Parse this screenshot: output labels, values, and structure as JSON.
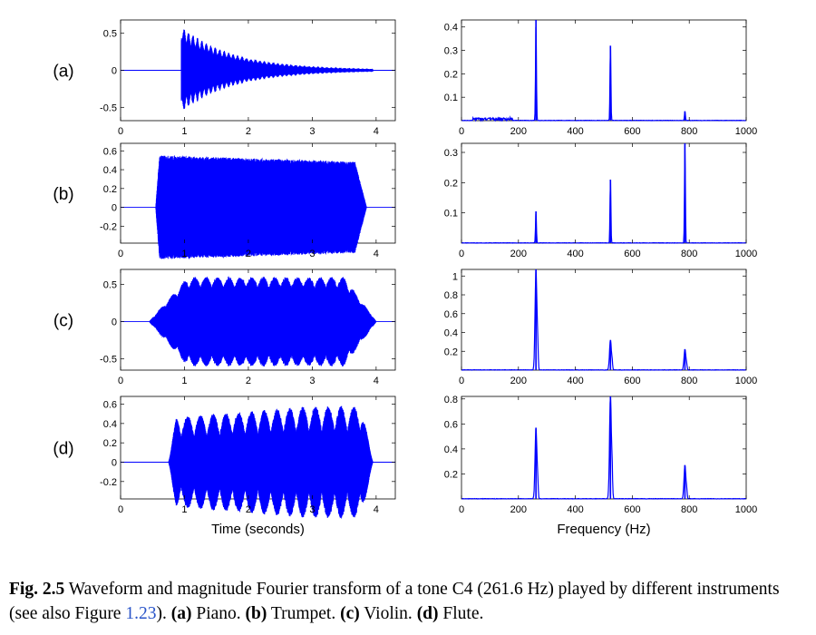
{
  "chart_data": {
    "type": "line",
    "panels": [
      "(a)",
      "(b)",
      "(c)",
      "(d)"
    ],
    "series_color": "#0000ff",
    "x_axis_label": "Time (seconds)",
    "f_axis_label": "Frequency (Hz)",
    "x_ticks": [
      "0",
      "1",
      "2",
      "3",
      "4"
    ],
    "f_ticks": [
      "0",
      "200",
      "400",
      "600",
      "800",
      "1000"
    ],
    "xlim": [
      0,
      4.3
    ],
    "flim": [
      0,
      1000
    ],
    "rows": [
      {
        "label": "(a)",
        "instrument": "Piano",
        "wave": {
          "ylim": [
            -0.68,
            0.68
          ],
          "yticks": [
            "0.5",
            "0",
            "-0.5"
          ],
          "ytick_values": [
            0.5,
            0,
            -0.5
          ],
          "onset": 0.95,
          "end": 3.95,
          "peak": 0.6,
          "envelope": "decay"
        },
        "spectrum": {
          "ylim": [
            0,
            0.43
          ],
          "yticks": [
            "0.4",
            "0.3",
            "0.2",
            "0.1"
          ],
          "ytick_values": [
            0.4,
            0.3,
            0.2,
            0.1
          ],
          "peaks": [
            {
              "f": 261.6,
              "a": 0.43
            },
            {
              "f": 523.2,
              "a": 0.32
            },
            {
              "f": 784.8,
              "a": 0.04
            }
          ]
        }
      },
      {
        "label": "(b)",
        "instrument": "Trumpet",
        "wave": {
          "ylim": [
            -0.38,
            0.68
          ],
          "yticks": [
            "0.6",
            "0.4",
            "0.2",
            "0",
            "-0.2"
          ],
          "ytick_values": [
            0.6,
            0.4,
            0.2,
            0,
            -0.2
          ],
          "onset": 0.55,
          "end": 3.85,
          "peak": 0.6,
          "envelope": "sustain"
        },
        "spectrum": {
          "ylim": [
            0,
            0.33
          ],
          "yticks": [
            "0.3",
            "0.2",
            "0.1"
          ],
          "ytick_values": [
            0.3,
            0.2,
            0.1
          ],
          "peaks": [
            {
              "f": 261.6,
              "a": 0.105
            },
            {
              "f": 523.2,
              "a": 0.21
            },
            {
              "f": 784.8,
              "a": 0.33
            }
          ]
        }
      },
      {
        "label": "(c)",
        "instrument": "Violin",
        "wave": {
          "ylim": [
            -0.65,
            0.7
          ],
          "yticks": [
            "0.5",
            "0",
            "-0.5"
          ],
          "ytick_values": [
            0.5,
            0,
            -0.5
          ],
          "onset": 0.45,
          "end": 4.0,
          "peak": 0.6,
          "envelope": "vibrato"
        },
        "spectrum": {
          "ylim": [
            0,
            1.07
          ],
          "yticks": [
            "1",
            "0.8",
            "0.6",
            "0.4",
            "0.2"
          ],
          "ytick_values": [
            1,
            0.8,
            0.6,
            0.4,
            0.2
          ],
          "peaks": [
            {
              "f": 261.6,
              "a": 1.07
            },
            {
              "f": 523.2,
              "a": 0.32
            },
            {
              "f": 784.8,
              "a": 0.22
            }
          ]
        }
      },
      {
        "label": "(d)",
        "instrument": "Flute",
        "wave": {
          "ylim": [
            -0.38,
            0.68
          ],
          "yticks": [
            "0.6",
            "0.4",
            "0.2",
            "0",
            "-0.2"
          ],
          "ytick_values": [
            0.6,
            0.4,
            0.2,
            0,
            -0.2
          ],
          "onset": 0.75,
          "end": 3.95,
          "peak": 0.58,
          "envelope": "tremolo"
        },
        "spectrum": {
          "ylim": [
            0,
            0.82
          ],
          "yticks": [
            "0.8",
            "0.6",
            "0.4",
            "0.2"
          ],
          "ytick_values": [
            0.8,
            0.6,
            0.4,
            0.2
          ],
          "peaks": [
            {
              "f": 261.6,
              "a": 0.57
            },
            {
              "f": 523.2,
              "a": 0.82
            },
            {
              "f": 784.8,
              "a": 0.27
            }
          ]
        }
      }
    ]
  },
  "caption": {
    "prefix": "Fig. 2.5",
    "text_1": "  Waveform and magnitude Fourier transform of a tone C4 (261.6 Hz) played by different instruments (see also Figure ",
    "ref": "1.23",
    "text_2": "). ",
    "a_label": "(a)",
    "a_text": " Piano. ",
    "b_label": "(b)",
    "b_text": " Trumpet. ",
    "c_label": "(c)",
    "c_text": " Violin. ",
    "d_label": "(d)",
    "d_text": " Flute."
  }
}
